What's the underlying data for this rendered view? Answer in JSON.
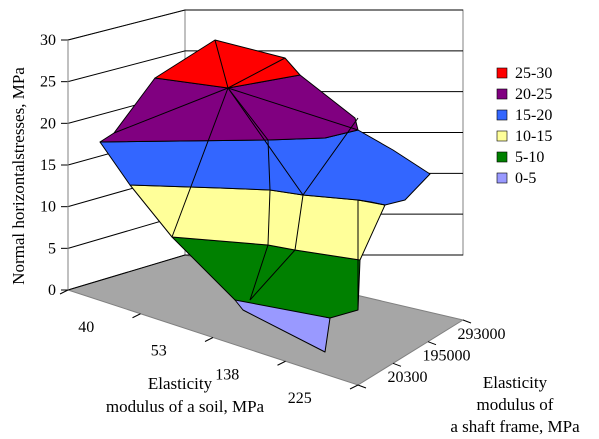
{
  "chart_data": {
    "type": "surface",
    "title": "",
    "zlabel": "Normal horizontalstresses, MPa",
    "xlabel_lines": [
      "Elasticity",
      "modulus of a soil, MPa"
    ],
    "ylabel_lines": [
      "Elasticity",
      "modulus of",
      "a shaft frame, MPa"
    ],
    "x_ticks": [
      "40",
      "53",
      "138",
      "225"
    ],
    "y_ticks": [
      "20300",
      "195000",
      "293000"
    ],
    "z_ticks": [
      "0",
      "5",
      "10",
      "15",
      "20",
      "25",
      "30"
    ],
    "zlim": [
      0,
      30
    ],
    "grid": true,
    "legend_position": "right",
    "bands": [
      {
        "label": "25-30",
        "color": "#ff0000"
      },
      {
        "label": "20-25",
        "color": "#800080"
      },
      {
        "label": "15-20",
        "color": "#3366ff"
      },
      {
        "label": "10-15",
        "color": "#ffff99"
      },
      {
        "label": "5-10",
        "color": "#008000"
      },
      {
        "label": "0-5",
        "color": "#9999ff"
      }
    ]
  }
}
